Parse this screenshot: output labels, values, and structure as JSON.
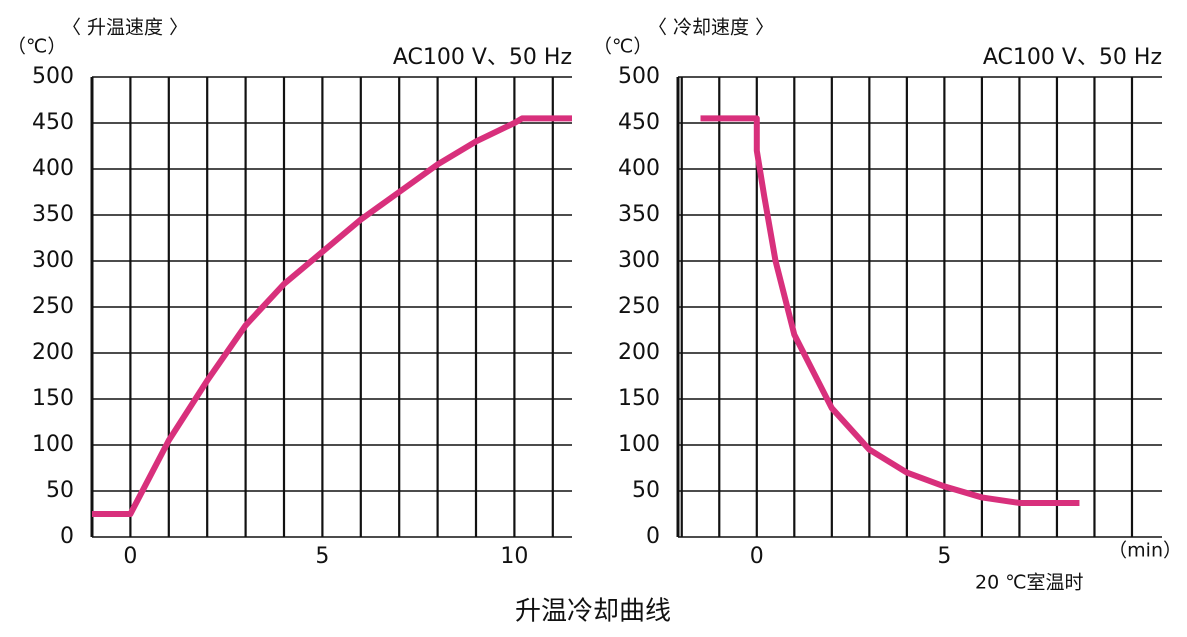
{
  "caption": "升温冷却曲线",
  "chart_data": [
    {
      "type": "line",
      "title": "〈 升温速度 〉",
      "y_unit": "（℃）",
      "subtitle": "AC100 V、50 Hz",
      "x": [
        -1,
        0,
        0.5,
        1,
        2,
        3,
        4,
        5,
        6,
        7,
        8,
        9,
        10,
        10.2,
        11.5
      ],
      "series": [
        {
          "color": "#d8307c",
          "values": [
            25,
            25,
            65,
            105,
            170,
            230,
            275,
            310,
            345,
            375,
            405,
            430,
            450,
            455,
            455
          ]
        }
      ],
      "xlim": [
        -1,
        11.5
      ],
      "ylim": [
        0,
        500
      ],
      "xticks": [
        0,
        5,
        10
      ],
      "yticks": [
        0,
        50,
        100,
        150,
        200,
        250,
        300,
        350,
        400,
        450,
        500
      ],
      "x_grid": [
        -1,
        0,
        1,
        2,
        3,
        4,
        5,
        6,
        7,
        8,
        9,
        10,
        11
      ],
      "grid": true
    },
    {
      "type": "line",
      "title": "〈 冷却速度 〉",
      "y_unit": "（℃）",
      "subtitle": "AC100 V、50 Hz",
      "x_label": "（min）",
      "annotation": "20 ℃室温时",
      "x": [
        -1.5,
        0,
        0,
        0.2,
        0.5,
        1,
        2,
        3,
        4,
        5,
        6,
        7,
        8.6
      ],
      "series": [
        {
          "color": "#d8307c",
          "values": [
            455,
            455,
            420,
            370,
            300,
            220,
            140,
            95,
            70,
            55,
            43,
            37,
            37
          ]
        }
      ],
      "xlim": [
        -2.1,
        10.8
      ],
      "ylim": [
        0,
        500
      ],
      "xticks": [
        0,
        5
      ],
      "yticks": [
        0,
        50,
        100,
        150,
        200,
        250,
        300,
        350,
        400,
        450,
        500
      ],
      "x_grid": [
        -2,
        -1,
        0,
        1,
        2,
        3,
        4,
        5,
        6,
        7,
        8,
        9,
        10
      ],
      "grid": true
    }
  ]
}
